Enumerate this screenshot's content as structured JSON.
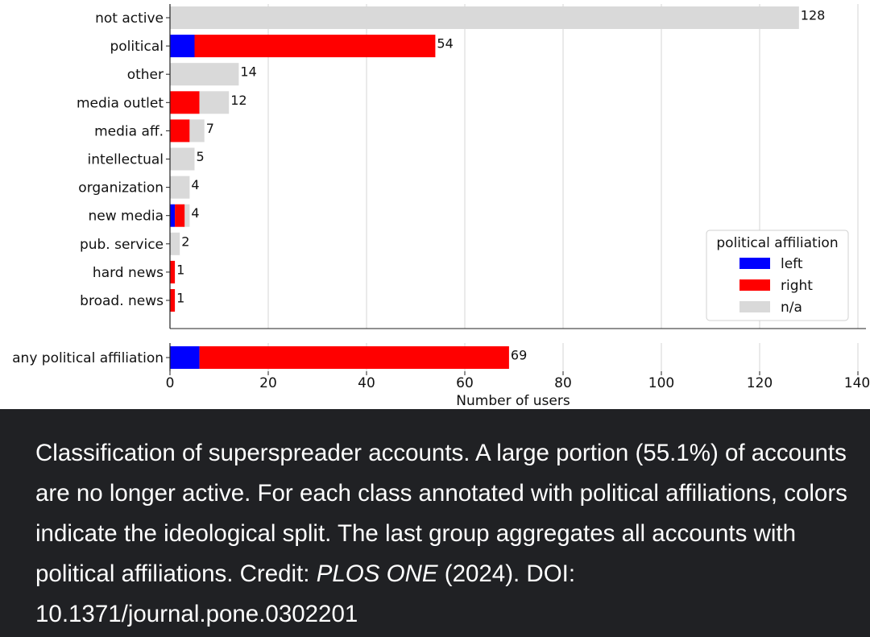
{
  "chart_data": {
    "type": "bar",
    "orientation": "horizontal",
    "stacked": true,
    "xlabel": "Number of users",
    "xlim": [
      0,
      140
    ],
    "xticks": [
      0,
      20,
      40,
      60,
      80,
      100,
      120,
      140
    ],
    "grid": "vertical",
    "legend": {
      "title": "political affiliation",
      "placement": "right",
      "entries": [
        {
          "label": "left",
          "color": "#0000ff"
        },
        {
          "label": "right",
          "color": "#ff0000"
        },
        {
          "label": "n/a",
          "color": "#d9d9d9"
        }
      ]
    },
    "categories": [
      "not active",
      "political",
      "other",
      "media outlet",
      "media aff.",
      "intellectual",
      "organization",
      "new media",
      "pub. service",
      "hard news",
      "broad. news"
    ],
    "series": [
      {
        "name": "left",
        "color": "#0000ff",
        "values": [
          0,
          5,
          0,
          0,
          0,
          0,
          0,
          1,
          0,
          0,
          0
        ]
      },
      {
        "name": "right",
        "color": "#ff0000",
        "values": [
          0,
          49,
          0,
          6,
          4,
          0,
          0,
          2,
          0,
          1,
          1
        ]
      },
      {
        "name": "n/a",
        "color": "#d9d9d9",
        "values": [
          128,
          0,
          14,
          6,
          3,
          5,
          4,
          1,
          2,
          0,
          0
        ]
      }
    ],
    "totals": [
      128,
      54,
      14,
      12,
      7,
      5,
      4,
      4,
      2,
      1,
      1
    ],
    "aggregate": {
      "category": "any political affiliation",
      "left": 6,
      "right": 63,
      "na": 0,
      "total": 69
    }
  },
  "caption": {
    "text": "Classification of superspreader accounts. A large portion (55.1%) of accounts are no longer active. For each class annotated with political affiliations, colors indicate the ideological split. The last group aggregates all accounts with political affiliations. Credit:",
    "journal": "PLOS ONE",
    "credit_rest": " (2024). DOI: 10.1371/journal.pone.0302201"
  },
  "colors": {
    "caption_background": "#202124",
    "caption_text": "#ffffff"
  }
}
